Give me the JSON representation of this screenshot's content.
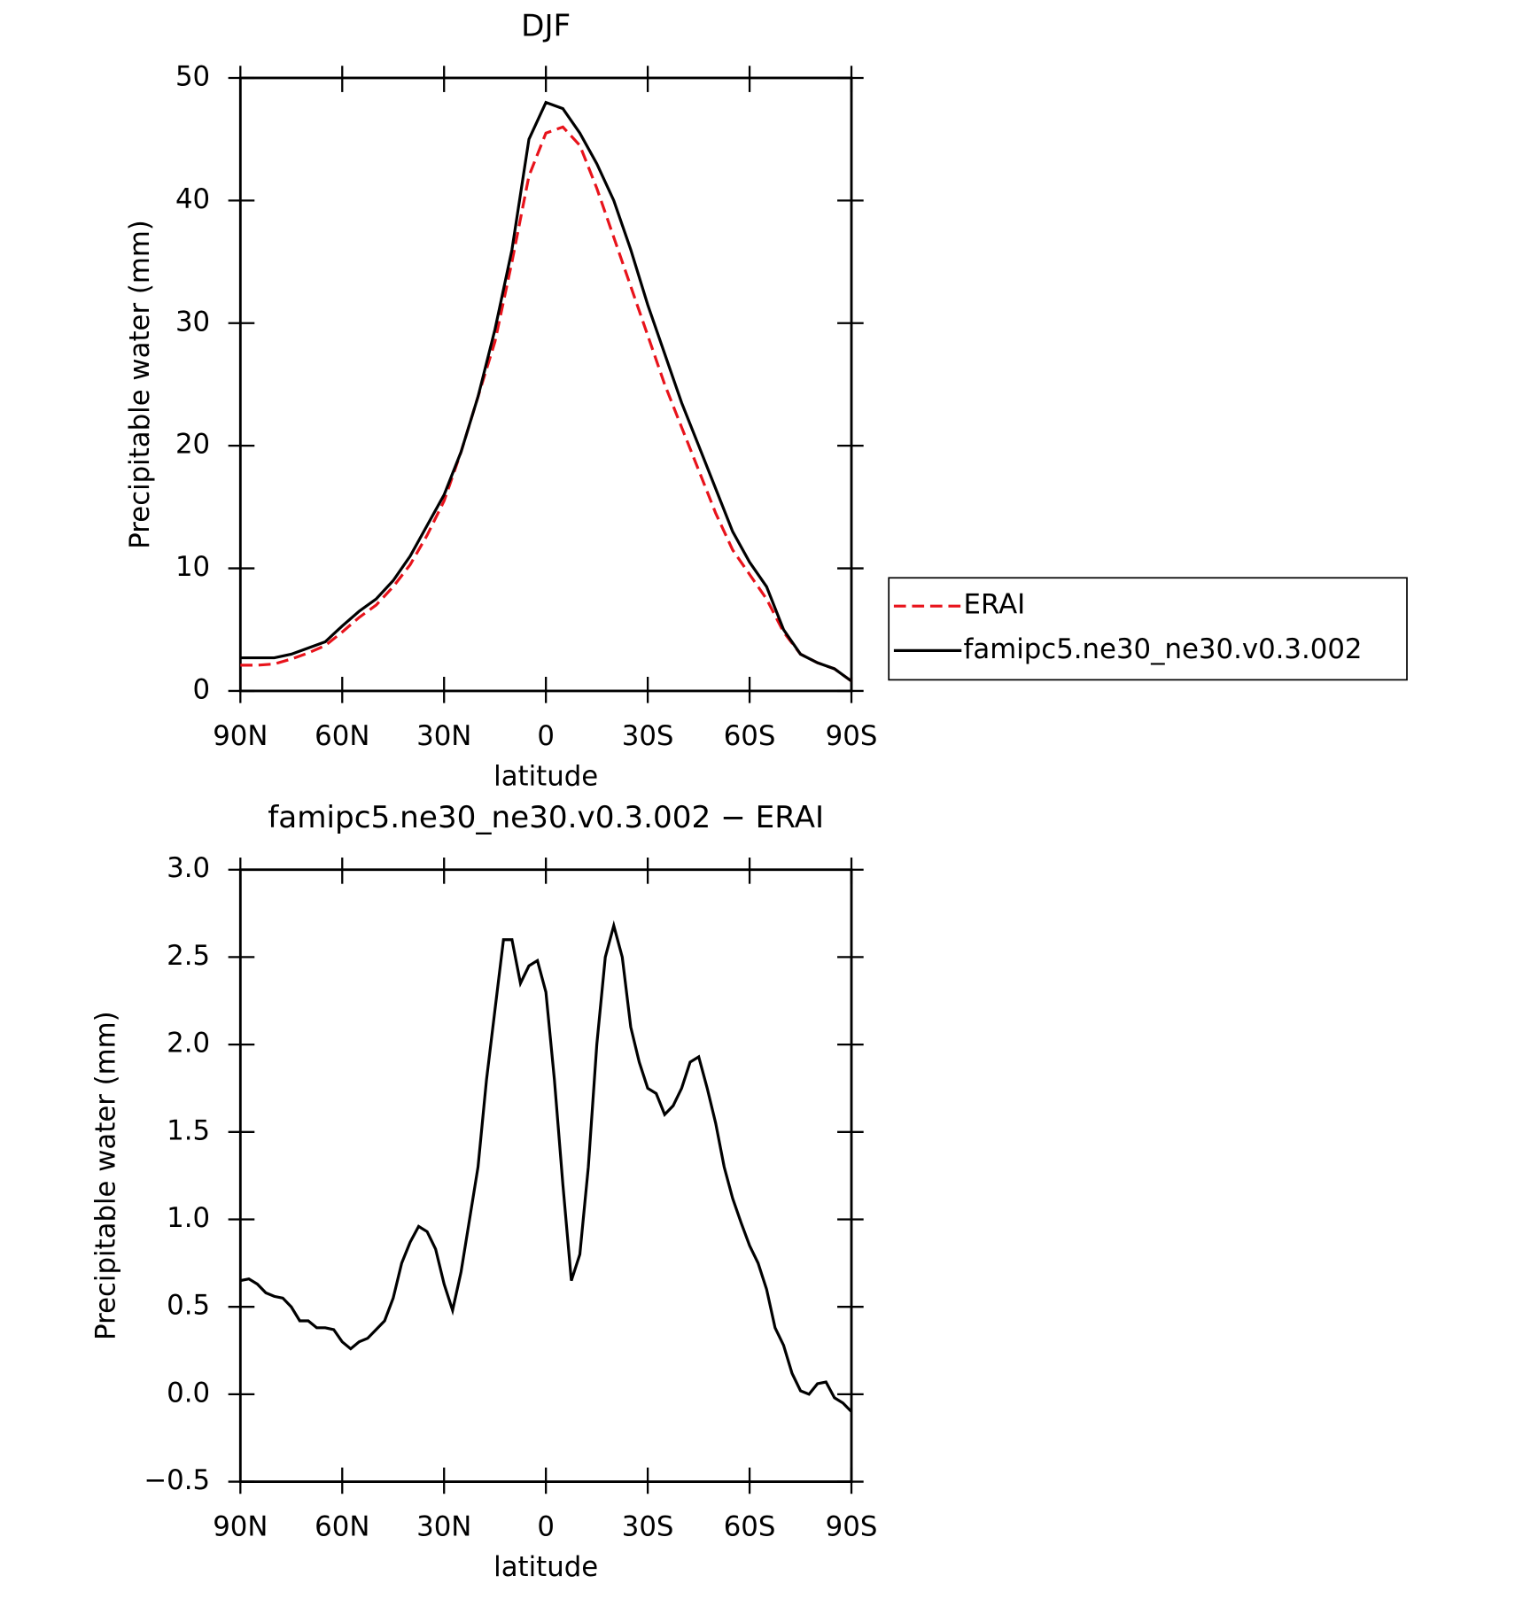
{
  "chart_data": [
    {
      "type": "line",
      "title": "DJF",
      "xlabel": "latitude",
      "ylabel": "Precipitable water (mm)",
      "x": [
        90,
        85,
        80,
        75,
        70,
        65,
        60,
        55,
        50,
        45,
        40,
        35,
        30,
        25,
        20,
        15,
        10,
        5,
        0,
        -5,
        -10,
        -15,
        -20,
        -25,
        -30,
        -35,
        -40,
        -45,
        -50,
        -55,
        -60,
        -65,
        -70,
        -75,
        -80,
        -85,
        -90
      ],
      "series": [
        {
          "name": "ERAI",
          "color": "#e8131b",
          "dash": true,
          "values": [
            2.1,
            2.1,
            2.2,
            2.6,
            3.1,
            3.7,
            4.8,
            6,
            7,
            8.5,
            10.3,
            12.7,
            15.5,
            19.5,
            24,
            28.5,
            35,
            42,
            45.5,
            46,
            44.5,
            41,
            37,
            33,
            29,
            25,
            21.5,
            18,
            14.5,
            11.5,
            9.5,
            7.5,
            4.8,
            3,
            2.3,
            1.8,
            0.8
          ]
        },
        {
          "name": "famipc5.ne30_ne30.v0.3.002",
          "color": "#000000",
          "dash": false,
          "values": [
            2.7,
            2.7,
            2.7,
            3.0,
            3.5,
            4.0,
            5.3,
            6.5,
            7.5,
            9,
            11,
            13.5,
            16,
            19.5,
            24,
            29.5,
            36,
            45,
            48,
            47.5,
            45.5,
            43,
            40,
            36,
            31.5,
            27.5,
            23.5,
            20,
            16.5,
            13,
            10.5,
            8.5,
            5,
            3,
            2.3,
            1.8,
            0.8
          ]
        }
      ],
      "xlim": [
        90,
        -90
      ],
      "xticks": [
        {
          "value": 90,
          "label": "90N"
        },
        {
          "value": 60,
          "label": "60N"
        },
        {
          "value": 30,
          "label": "30N"
        },
        0,
        {
          "value": -30,
          "label": "30S"
        },
        {
          "value": -60,
          "label": "60S"
        },
        {
          "value": -90,
          "label": "90S"
        }
      ],
      "ylim": [
        0,
        50
      ],
      "yticks": [
        0,
        10,
        20,
        30,
        40,
        50
      ],
      "legend": "right"
    },
    {
      "type": "line",
      "title": "famipc5.ne30_ne30.v0.3.002 − ERAI",
      "xlabel": "latitude",
      "ylabel": "Precipitable water (mm)",
      "x": [
        90,
        87.5,
        85,
        82.5,
        80,
        77.5,
        75,
        72.5,
        70,
        67.5,
        65,
        62.5,
        60,
        57.5,
        55,
        52.5,
        50,
        47.5,
        45,
        42.5,
        40,
        37.5,
        35,
        32.5,
        30,
        27.5,
        25,
        22.5,
        20,
        17.5,
        15,
        12.5,
        10,
        7.5,
        5,
        2.5,
        0,
        -2.5,
        -5,
        -7.5,
        -10,
        -12.5,
        -15,
        -17.5,
        -20,
        -22.5,
        -25,
        -27.5,
        -30,
        -32.5,
        -35,
        -37.5,
        -40,
        -42.5,
        -45,
        -47.5,
        -50,
        -52.5,
        -55,
        -57.5,
        -60,
        -62.5,
        -65,
        -67.5,
        -70,
        -72.5,
        -75,
        -77.5,
        -80,
        -82.5,
        -85,
        -87.5,
        -90
      ],
      "series": [
        {
          "color": "#000000",
          "dash": false,
          "values": [
            0.65,
            0.66,
            0.63,
            0.58,
            0.56,
            0.55,
            0.5,
            0.42,
            0.42,
            0.38,
            0.38,
            0.37,
            0.3,
            0.26,
            0.3,
            0.32,
            0.37,
            0.42,
            0.55,
            0.75,
            0.87,
            0.96,
            0.93,
            0.83,
            0.63,
            0.48,
            0.7,
            1.0,
            1.3,
            1.8,
            2.2,
            2.6,
            2.6,
            2.35,
            2.45,
            2.48,
            2.3,
            1.8,
            1.2,
            0.65,
            0.8,
            1.3,
            2.0,
            2.5,
            2.68,
            2.5,
            2.1,
            1.9,
            1.75,
            1.72,
            1.6,
            1.65,
            1.75,
            1.9,
            1.93,
            1.75,
            1.55,
            1.3,
            1.12,
            0.98,
            0.85,
            0.75,
            0.6,
            0.38,
            0.28,
            0.12,
            0.02,
            0.0,
            0.06,
            0.07,
            -0.02,
            -0.05,
            -0.1
          ]
        }
      ],
      "xlim": [
        90,
        -90
      ],
      "xticks": [
        {
          "value": 90,
          "label": "90N"
        },
        {
          "value": 60,
          "label": "60N"
        },
        {
          "value": 30,
          "label": "30N"
        },
        0,
        {
          "value": -30,
          "label": "30S"
        },
        {
          "value": -60,
          "label": "60S"
        },
        {
          "value": -90,
          "label": "90S"
        }
      ],
      "ylim": [
        -0.5,
        3
      ],
      "yticks": [
        {
          "value": -0.5,
          "label": "−0.5"
        },
        {
          "value": 0,
          "label": "0.0"
        },
        0.5,
        {
          "value": 1,
          "label": "1.0"
        },
        1.5,
        {
          "value": 2,
          "label": "2.0"
        },
        2.5,
        {
          "value": 3,
          "label": "3.0"
        }
      ]
    }
  ]
}
